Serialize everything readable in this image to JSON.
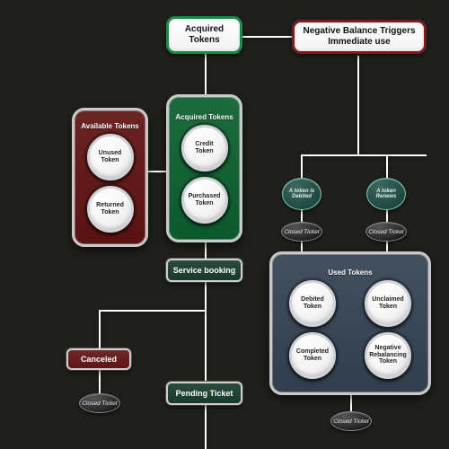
{
  "diagram": {
    "type": "flowchart",
    "background_color": "#1f1f1e",
    "colors": {
      "green_border": "#1b8a4a",
      "green_fill": "#1d6b3e",
      "red_border": "#7a1d1d",
      "red_fill": "#6b2424",
      "slate_border": "#9aa3ae",
      "slate_fill": "#44505f",
      "teal_border": "#2e6e60",
      "teal_fill": "#1e4a41",
      "cancel_fill": "#5e1515",
      "edge": "#ffffff"
    },
    "nodes": {
      "acquired_header": {
        "label": "Acquired Tokens",
        "border": "#1b8a4a"
      },
      "negative_header": {
        "label": "Negative Balance Triggers Immediate use",
        "border": "#7a1d1d"
      },
      "panel_available": {
        "title": "Available Tokens",
        "fill": "#6b2424",
        "border": "#c9c9c9",
        "tokens": [
          "Unused Token",
          "Returned Token"
        ]
      },
      "panel_acquired": {
        "title": "Acquired Tokens",
        "fill": "#1d6b3e",
        "border": "#c9c9c9",
        "tokens": [
          "Credit Token",
          "Purchased Token"
        ]
      },
      "panel_used": {
        "title": "Used Tokens",
        "fill": "#44505f",
        "border": "#c9c9c9",
        "tokens": [
          "Debited Token",
          "Unclaimed Token",
          "Completed Token",
          "Negative Rebalancing Token"
        ]
      },
      "service_booking": {
        "label": "Service booking",
        "fill": "#173a2a",
        "border": "#d0d0d0"
      },
      "pending_ticket": {
        "label": "Pending Ticket",
        "fill": "#173a2a",
        "border": "#d0d0d0"
      },
      "canceled": {
        "label": "Canceled",
        "fill": "#5e1515",
        "border": "#d0d0d0"
      },
      "closed_ticket": {
        "label": "Closed Ticket"
      },
      "token_debited": {
        "label": "A token is Debited",
        "fill": "#1e4a41",
        "border": "#7ec7b6"
      },
      "token_renews": {
        "label": "A token Renews",
        "fill": "#1e4a41",
        "border": "#7ec7b6"
      }
    },
    "edges": [
      {
        "from": "acquired_header",
        "to": "panel_acquired"
      },
      {
        "from": "acquired_header",
        "to": "negative_header"
      },
      {
        "from": "negative_header",
        "to": "token_debited"
      },
      {
        "from": "negative_header",
        "to": "token_renews"
      },
      {
        "from": "panel_available",
        "to": "panel_acquired"
      },
      {
        "from": "panel_acquired",
        "to": "service_booking"
      },
      {
        "from": "service_booking",
        "to": "pending_ticket"
      },
      {
        "from": "service_booking",
        "to": "canceled"
      },
      {
        "from": "canceled",
        "to": "closed_ticket_1"
      },
      {
        "from": "token_debited",
        "to": "closed_ticket_2"
      },
      {
        "from": "token_renews",
        "to": "closed_ticket_3"
      },
      {
        "from": "panel_used",
        "to": "closed_ticket_4"
      }
    ],
    "fontsize": {
      "header": 10,
      "panel_title": 8,
      "token": 7,
      "label": 9,
      "pill": 6.5
    }
  }
}
